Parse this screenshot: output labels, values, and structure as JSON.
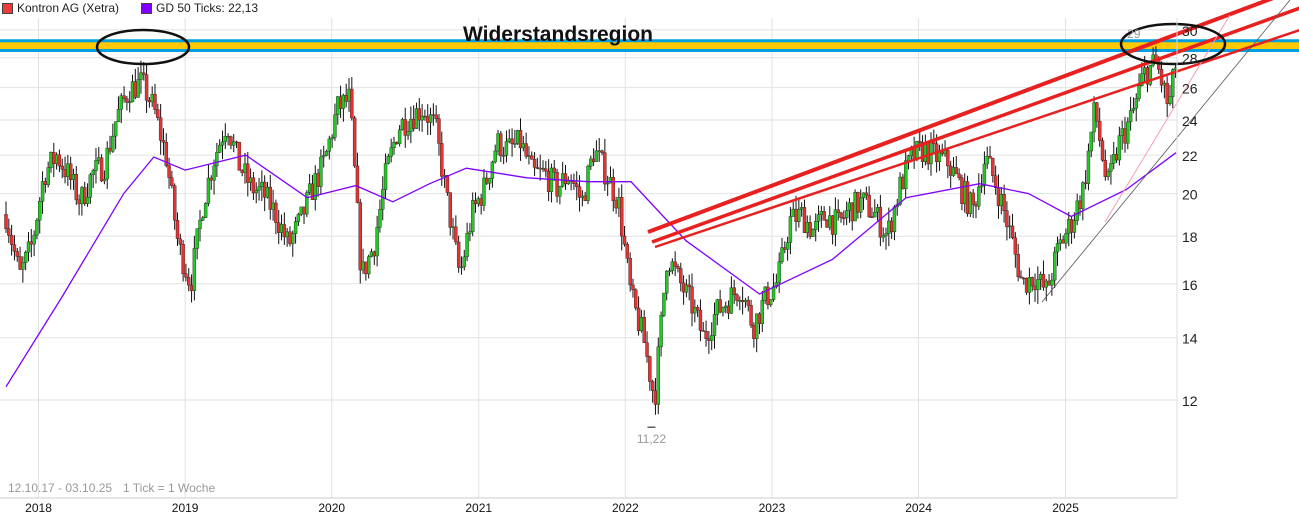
{
  "legend": {
    "main": {
      "label": "Kontron AG (Xetra)",
      "color": "#ee3b3b"
    },
    "sma": {
      "label": "GD 50 Ticks: 22,13",
      "color": "#7f00ff"
    }
  },
  "chart_data": {
    "type": "candlestick",
    "title": "Widerstandsregion",
    "period_label": "12.10.17 - 03.10.25",
    "tick_label": "1 Tick = 1 Woche",
    "x_range": [
      "2017-10-12",
      "2025-10-03"
    ],
    "x_ticks": [
      "2018",
      "2019",
      "2020",
      "2021",
      "2022",
      "2023",
      "2024",
      "2025"
    ],
    "y_scale": "log",
    "y_ticks": [
      12,
      14,
      16,
      18,
      20,
      22,
      24,
      26,
      28,
      30
    ],
    "y_range": [
      10.3,
      31
    ],
    "grid": true,
    "colors": {
      "up": "#22c922",
      "down": "#e83232",
      "sma": "#7f00ff",
      "trend": "#e82020",
      "band": "#ffc800",
      "band_border": "#00a0e0"
    },
    "monthly_close": {
      "start": "2017-10",
      "values": [
        19.0,
        16.3,
        17.6,
        21.0,
        22.0,
        21.0,
        19.6,
        21.0,
        21.5,
        24.2,
        25.9,
        26.3,
        24.7,
        21.9,
        17.6,
        16.0,
        19.6,
        21.9,
        23.9,
        21.5,
        20.3,
        20.0,
        19.0,
        17.6,
        18.7,
        20.3,
        21.7,
        24.7,
        25.3,
        16.3,
        17.6,
        21.0,
        23.6,
        24.2,
        24.7,
        23.6,
        19.6,
        16.3,
        19.0,
        20.3,
        22.7,
        22.3,
        22.7,
        21.0,
        21.0,
        20.3,
        21.0,
        19.6,
        22.3,
        21.0,
        19.6,
        15.5,
        14.0,
        12.0,
        17.2,
        16.1,
        15.2,
        14.0,
        14.9,
        15.4,
        15.9,
        14.4,
        15.4,
        16.1,
        18.7,
        19.0,
        18.2,
        19.0,
        18.5,
        19.3,
        19.6,
        19.0,
        18.0,
        20.3,
        21.9,
        22.3,
        21.9,
        21.6,
        20.3,
        19.2,
        21.9,
        20.3,
        18.2,
        16.0,
        16.3,
        15.7,
        17.5,
        18.6,
        20.3,
        24.7,
        20.3,
        22.7,
        24.2,
        26.9,
        27.7,
        24.7,
        27.7
      ]
    },
    "sma_series": {
      "name": "GD 50 Ticks",
      "points": [
        [
          "2017-10-12",
          12.4
        ],
        [
          "2018-03-01",
          15.5
        ],
        [
          "2018-08-01",
          20.0
        ],
        [
          "2018-10-15",
          21.9
        ],
        [
          "2019-01-01",
          21.2
        ],
        [
          "2019-06-01",
          22.0
        ],
        [
          "2019-11-01",
          19.8
        ],
        [
          "2020-03-01",
          20.4
        ],
        [
          "2020-06-01",
          19.6
        ],
        [
          "2020-09-01",
          20.5
        ],
        [
          "2020-12-01",
          21.3
        ],
        [
          "2021-05-01",
          20.8
        ],
        [
          "2021-10-01",
          20.6
        ],
        [
          "2022-01-15",
          20.6
        ],
        [
          "2022-06-01",
          17.8
        ],
        [
          "2022-12-01",
          15.6
        ],
        [
          "2023-06-01",
          17.0
        ],
        [
          "2023-12-01",
          19.8
        ],
        [
          "2024-06-01",
          20.5
        ],
        [
          "2024-10-01",
          20.0
        ],
        [
          "2025-01-15",
          18.9
        ],
        [
          "2025-06-01",
          20.2
        ],
        [
          "2025-10-03",
          22.13
        ]
      ]
    },
    "annotations": {
      "band": {
        "label": "Widerstandsregion",
        "low": 28.5,
        "high": 29.2
      },
      "high_label": "29",
      "low_label": "11,22",
      "low_value": 11.22,
      "high_value": 29,
      "high_date": "2025-06-20",
      "low_date": "2022-03-07"
    }
  }
}
